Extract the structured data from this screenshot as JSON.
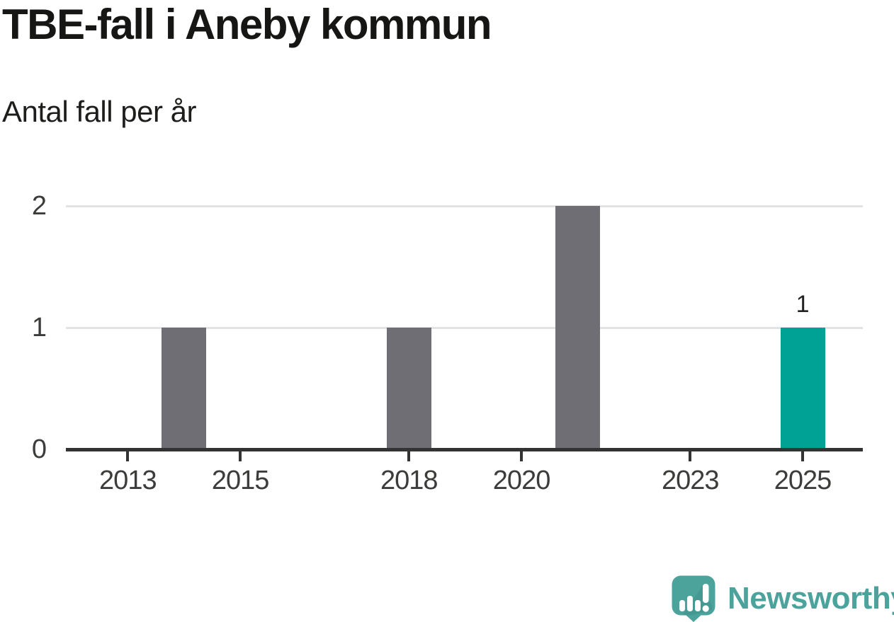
{
  "header": {
    "title": "TBE-fall i Aneby kommun",
    "subtitle": "Antal fall per år"
  },
  "chart_data": {
    "type": "bar",
    "title": "TBE-fall i Aneby kommun",
    "subtitle": "Antal fall per år",
    "x": [
      2014,
      2018,
      2021,
      2025
    ],
    "values": [
      1,
      1,
      2,
      1
    ],
    "highlight_x": 2025,
    "bar_color": "#6e6e74",
    "highlight_color": "#00a296",
    "grid_color": "#e3e3e5",
    "axis_color": "#333333",
    "xticks": [
      2013,
      2015,
      2018,
      2020,
      2023,
      2025
    ],
    "yticks": [
      0,
      1,
      2
    ],
    "xlim": [
      2011.9,
      2026.07
    ],
    "ylim": [
      0,
      2
    ],
    "grid": "horizontal-only",
    "legend": "none",
    "value_labels": [
      {
        "x": 2025,
        "text": "1"
      }
    ]
  },
  "footer": {
    "brand": "Newsworthy",
    "brand_color": "#4ba39c",
    "logo": "newsworthy-speech-bubble-bar-chart-icon"
  }
}
